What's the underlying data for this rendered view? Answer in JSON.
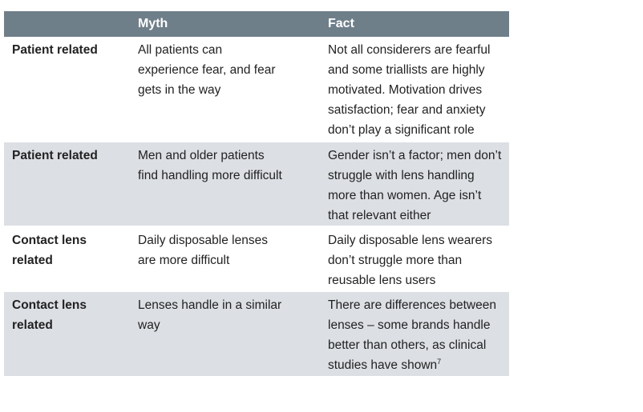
{
  "header": {
    "col1": "",
    "col2": "Myth",
    "col3": "Fact"
  },
  "rows": [
    {
      "category": "Patient related",
      "myth": "All patients can\nexperience fear, and fear\ngets in the way",
      "fact": "Not all considerers are fearful\nand some triallists are highly\nmotivated. Motivation drives\nsatisfaction; fear and anxiety\ndon’t play a significant role"
    },
    {
      "category": "Patient related",
      "myth": "Men and older patients\nfind handling more difficult",
      "fact": "Gender isn’t a factor; men don’t\nstruggle with lens handling\nmore than women. Age isn’t\nthat relevant either"
    },
    {
      "category": "Contact lens\nrelated",
      "myth": "Daily disposable lenses\nare more difficult",
      "fact": "Daily disposable lens wearers\ndon’t struggle more than\nreusable lens users"
    },
    {
      "category": "Contact lens\nrelated",
      "myth": "Lenses handle in a similar\nway",
      "fact": "There are differences between\nlenses – some brands handle\nbetter than others, as clinical\nstudies have shown",
      "fact_ref": "7"
    }
  ]
}
